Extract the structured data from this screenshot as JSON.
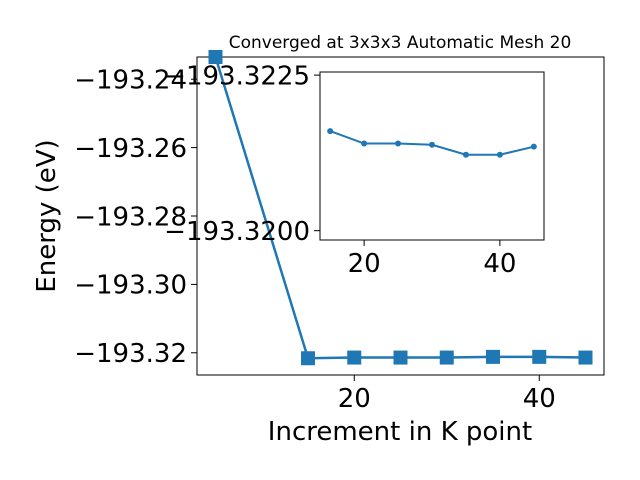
{
  "chart_data": [
    {
      "type": "line",
      "title": "Converged at 3x3x3 Automatic Mesh 20",
      "xlabel": "Increment in K point",
      "ylabel": "Energy (eV)",
      "xlim": [
        3,
        47
      ],
      "ylim": [
        -193.3265,
        -193.2335
      ],
      "x_ticks": [
        20,
        40
      ],
      "x_tick_labels": [
        "20",
        "40"
      ],
      "y_ticks": [
        -193.24,
        -193.26,
        -193.28,
        -193.3,
        -193.32
      ],
      "y_tick_labels": [
        "−193.24",
        "−193.26",
        "−193.28",
        "−193.30",
        "−193.32"
      ],
      "marker": "square",
      "color": "#1f77b4",
      "series": [
        {
          "x": [
            5,
            15,
            20,
            25,
            30,
            35,
            40,
            45
          ],
          "y": [
            -193.2335,
            -193.3216,
            -193.3214,
            -193.3214,
            -193.3214,
            -193.3212,
            -193.3212,
            -193.3214
          ]
        }
      ]
    },
    {
      "type": "line",
      "title": "",
      "xlabel": "",
      "ylabel": "",
      "xlim": [
        13.5,
        46.5
      ],
      "ylim": [
        -193.31985,
        -193.32255
      ],
      "x_ticks": [
        20,
        40
      ],
      "x_tick_labels": [
        "20",
        "40"
      ],
      "y_ticks": [
        -193.3225,
        -193.32
      ],
      "y_tick_labels": [
        "−193.3225",
        "−193.3200"
      ],
      "marker": "circle",
      "color": "#1f77b4",
      "series": [
        {
          "x": [
            15,
            20,
            25,
            30,
            35,
            40,
            45
          ],
          "y": [
            -193.3216,
            -193.3214,
            -193.3214,
            -193.32138,
            -193.32122,
            -193.32122,
            -193.32135
          ]
        }
      ]
    }
  ]
}
